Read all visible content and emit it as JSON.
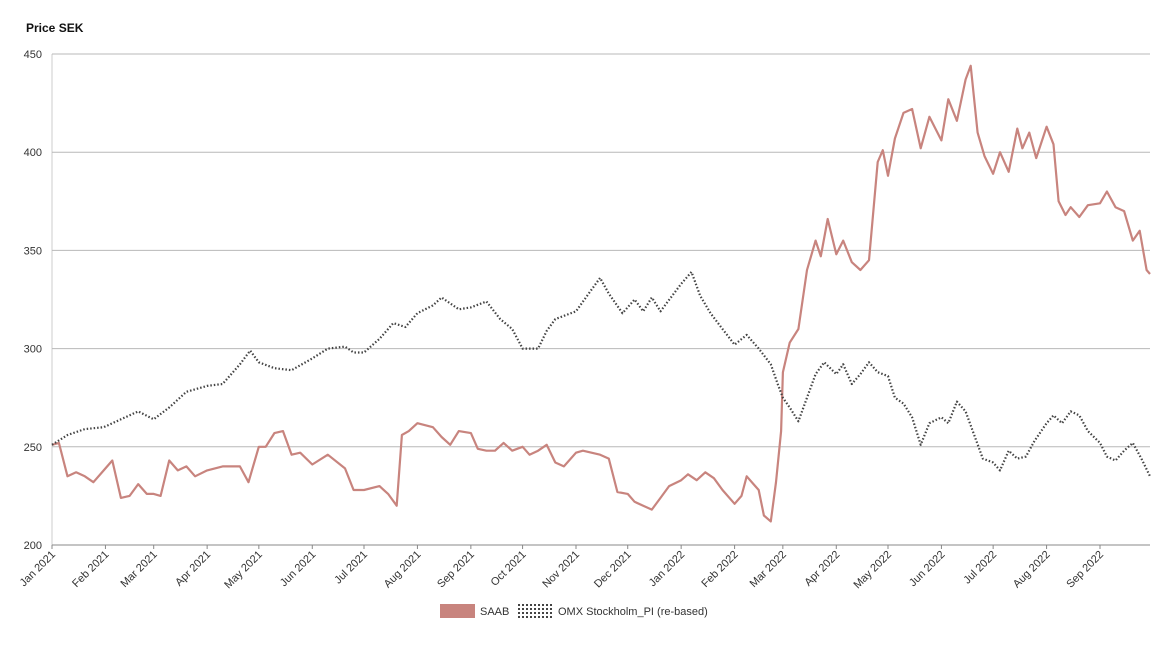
{
  "chart_data": {
    "type": "line",
    "ylabel": "Price SEK",
    "ylim": [
      200,
      450
    ],
    "yticks": [
      200,
      250,
      300,
      350,
      400,
      450
    ],
    "xlim": [
      "2021-01-01",
      "2022-09-30"
    ],
    "xticks": [
      {
        "date": "2021-01-01",
        "label": "Jan 2021"
      },
      {
        "date": "2021-02-01",
        "label": "Feb 2021"
      },
      {
        "date": "2021-03-01",
        "label": "Mar 2021"
      },
      {
        "date": "2021-04-01",
        "label": "Apr 2021"
      },
      {
        "date": "2021-05-01",
        "label": "May 2021"
      },
      {
        "date": "2021-06-01",
        "label": "Jun 2021"
      },
      {
        "date": "2021-07-01",
        "label": "Jul 2021"
      },
      {
        "date": "2021-08-01",
        "label": "Aug 2021"
      },
      {
        "date": "2021-09-01",
        "label": "Sep 2021"
      },
      {
        "date": "2021-10-01",
        "label": "Oct 2021"
      },
      {
        "date": "2021-11-01",
        "label": "Nov 2021"
      },
      {
        "date": "2021-12-01",
        "label": "Dec 2021"
      },
      {
        "date": "2022-01-01",
        "label": "Jan 2022"
      },
      {
        "date": "2022-02-01",
        "label": "Feb 2022"
      },
      {
        "date": "2022-03-01",
        "label": "Mar 2022"
      },
      {
        "date": "2022-04-01",
        "label": "Apr 2022"
      },
      {
        "date": "2022-05-01",
        "label": "May 2022"
      },
      {
        "date": "2022-06-01",
        "label": "Jun 2022"
      },
      {
        "date": "2022-07-01",
        "label": "Jul 2022"
      },
      {
        "date": "2022-08-01",
        "label": "Aug 2022"
      },
      {
        "date": "2022-09-01",
        "label": "Sep 2022"
      }
    ],
    "grid": true,
    "legend_position": "bottom",
    "series": [
      {
        "name": "SAAB",
        "color": "#c8847e",
        "style": "solid",
        "points": [
          [
            "2021-01-01",
            251
          ],
          [
            "2021-01-05",
            252
          ],
          [
            "2021-01-10",
            235
          ],
          [
            "2021-01-15",
            237
          ],
          [
            "2021-01-20",
            235
          ],
          [
            "2021-01-25",
            232
          ],
          [
            "2021-01-31",
            238
          ],
          [
            "2021-02-05",
            243
          ],
          [
            "2021-02-10",
            224
          ],
          [
            "2021-02-15",
            225
          ],
          [
            "2021-02-20",
            231
          ],
          [
            "2021-02-25",
            226
          ],
          [
            "2021-03-01",
            226
          ],
          [
            "2021-03-05",
            225
          ],
          [
            "2021-03-10",
            243
          ],
          [
            "2021-03-15",
            238
          ],
          [
            "2021-03-20",
            240
          ],
          [
            "2021-03-25",
            235
          ],
          [
            "2021-04-01",
            238
          ],
          [
            "2021-04-10",
            240
          ],
          [
            "2021-04-20",
            240
          ],
          [
            "2021-04-25",
            232
          ],
          [
            "2021-05-01",
            250
          ],
          [
            "2021-05-05",
            250
          ],
          [
            "2021-05-10",
            257
          ],
          [
            "2021-05-15",
            258
          ],
          [
            "2021-05-20",
            246
          ],
          [
            "2021-05-25",
            247
          ],
          [
            "2021-06-01",
            241
          ],
          [
            "2021-06-10",
            246
          ],
          [
            "2021-06-20",
            239
          ],
          [
            "2021-06-25",
            228
          ],
          [
            "2021-07-01",
            228
          ],
          [
            "2021-07-10",
            230
          ],
          [
            "2021-07-15",
            226
          ],
          [
            "2021-07-20",
            220
          ],
          [
            "2021-07-23",
            256
          ],
          [
            "2021-07-27",
            258
          ],
          [
            "2021-08-01",
            262
          ],
          [
            "2021-08-10",
            260
          ],
          [
            "2021-08-15",
            255
          ],
          [
            "2021-08-20",
            251
          ],
          [
            "2021-08-25",
            258
          ],
          [
            "2021-09-01",
            257
          ],
          [
            "2021-09-05",
            249
          ],
          [
            "2021-09-10",
            248
          ],
          [
            "2021-09-15",
            248
          ],
          [
            "2021-09-20",
            252
          ],
          [
            "2021-09-25",
            248
          ],
          [
            "2021-10-01",
            250
          ],
          [
            "2021-10-05",
            246
          ],
          [
            "2021-10-10",
            248
          ],
          [
            "2021-10-15",
            251
          ],
          [
            "2021-10-20",
            242
          ],
          [
            "2021-10-25",
            240
          ],
          [
            "2021-11-01",
            247
          ],
          [
            "2021-11-05",
            248
          ],
          [
            "2021-11-10",
            247
          ],
          [
            "2021-11-15",
            246
          ],
          [
            "2021-11-20",
            244
          ],
          [
            "2021-11-25",
            227
          ],
          [
            "2021-12-01",
            226
          ],
          [
            "2021-12-05",
            222
          ],
          [
            "2021-12-10",
            220
          ],
          [
            "2021-12-15",
            218
          ],
          [
            "2021-12-20",
            224
          ],
          [
            "2021-12-25",
            230
          ],
          [
            "2022-01-01",
            233
          ],
          [
            "2022-01-05",
            236
          ],
          [
            "2022-01-10",
            233
          ],
          [
            "2022-01-15",
            237
          ],
          [
            "2022-01-20",
            234
          ],
          [
            "2022-01-25",
            228
          ],
          [
            "2022-02-01",
            221
          ],
          [
            "2022-02-05",
            225
          ],
          [
            "2022-02-08",
            235
          ],
          [
            "2022-02-12",
            231
          ],
          [
            "2022-02-15",
            228
          ],
          [
            "2022-02-18",
            215
          ],
          [
            "2022-02-22",
            212
          ],
          [
            "2022-02-25",
            232
          ],
          [
            "2022-02-28",
            258
          ],
          [
            "2022-03-01",
            288
          ],
          [
            "2022-03-05",
            303
          ],
          [
            "2022-03-10",
            310
          ],
          [
            "2022-03-15",
            340
          ],
          [
            "2022-03-20",
            355
          ],
          [
            "2022-03-23",
            347
          ],
          [
            "2022-03-27",
            366
          ],
          [
            "2022-04-01",
            348
          ],
          [
            "2022-04-05",
            355
          ],
          [
            "2022-04-10",
            344
          ],
          [
            "2022-04-15",
            340
          ],
          [
            "2022-04-20",
            345
          ],
          [
            "2022-04-25",
            395
          ],
          [
            "2022-04-28",
            401
          ],
          [
            "2022-05-01",
            388
          ],
          [
            "2022-05-05",
            407
          ],
          [
            "2022-05-10",
            420
          ],
          [
            "2022-05-15",
            422
          ],
          [
            "2022-05-20",
            402
          ],
          [
            "2022-05-25",
            418
          ],
          [
            "2022-06-01",
            406
          ],
          [
            "2022-06-05",
            427
          ],
          [
            "2022-06-10",
            416
          ],
          [
            "2022-06-15",
            437
          ],
          [
            "2022-06-18",
            444
          ],
          [
            "2022-06-22",
            410
          ],
          [
            "2022-06-26",
            398
          ],
          [
            "2022-07-01",
            389
          ],
          [
            "2022-07-05",
            400
          ],
          [
            "2022-07-10",
            390
          ],
          [
            "2022-07-15",
            412
          ],
          [
            "2022-07-18",
            402
          ],
          [
            "2022-07-22",
            410
          ],
          [
            "2022-07-26",
            397
          ],
          [
            "2022-08-01",
            413
          ],
          [
            "2022-08-05",
            404
          ],
          [
            "2022-08-08",
            375
          ],
          [
            "2022-08-12",
            368
          ],
          [
            "2022-08-15",
            372
          ],
          [
            "2022-08-20",
            367
          ],
          [
            "2022-08-25",
            373
          ],
          [
            "2022-09-01",
            374
          ],
          [
            "2022-09-05",
            380
          ],
          [
            "2022-09-10",
            372
          ],
          [
            "2022-09-15",
            370
          ],
          [
            "2022-09-20",
            355
          ],
          [
            "2022-09-24",
            360
          ],
          [
            "2022-09-28",
            340
          ],
          [
            "2022-09-30",
            338
          ]
        ]
      },
      {
        "name": "OMX Stockholm_PI (re-based)",
        "color": "#444444",
        "style": "dotted",
        "points": [
          [
            "2021-01-01",
            251
          ],
          [
            "2021-01-10",
            256
          ],
          [
            "2021-01-20",
            259
          ],
          [
            "2021-01-31",
            260
          ],
          [
            "2021-02-10",
            264
          ],
          [
            "2021-02-20",
            268
          ],
          [
            "2021-03-01",
            264
          ],
          [
            "2021-03-10",
            270
          ],
          [
            "2021-03-20",
            278
          ],
          [
            "2021-04-01",
            281
          ],
          [
            "2021-04-10",
            282
          ],
          [
            "2021-04-20",
            292
          ],
          [
            "2021-04-26",
            299
          ],
          [
            "2021-05-01",
            293
          ],
          [
            "2021-05-10",
            290
          ],
          [
            "2021-05-20",
            289
          ],
          [
            "2021-06-01",
            295
          ],
          [
            "2021-06-10",
            300
          ],
          [
            "2021-06-20",
            301
          ],
          [
            "2021-06-25",
            298
          ],
          [
            "2021-07-01",
            298
          ],
          [
            "2021-07-10",
            305
          ],
          [
            "2021-07-18",
            313
          ],
          [
            "2021-07-25",
            311
          ],
          [
            "2021-08-01",
            318
          ],
          [
            "2021-08-10",
            322
          ],
          [
            "2021-08-15",
            326
          ],
          [
            "2021-08-25",
            320
          ],
          [
            "2021-09-01",
            321
          ],
          [
            "2021-09-10",
            324
          ],
          [
            "2021-09-18",
            315
          ],
          [
            "2021-09-25",
            310
          ],
          [
            "2021-10-01",
            300
          ],
          [
            "2021-10-10",
            300
          ],
          [
            "2021-10-15",
            309
          ],
          [
            "2021-10-20",
            315
          ],
          [
            "2021-11-01",
            319
          ],
          [
            "2021-11-10",
            330
          ],
          [
            "2021-11-15",
            336
          ],
          [
            "2021-11-20",
            328
          ],
          [
            "2021-11-28",
            318
          ],
          [
            "2021-12-05",
            325
          ],
          [
            "2021-12-10",
            319
          ],
          [
            "2021-12-15",
            326
          ],
          [
            "2021-12-20",
            319
          ],
          [
            "2022-01-01",
            333
          ],
          [
            "2022-01-07",
            339
          ],
          [
            "2022-01-12",
            327
          ],
          [
            "2022-01-18",
            318
          ],
          [
            "2022-01-25",
            310
          ],
          [
            "2022-02-01",
            302
          ],
          [
            "2022-02-08",
            307
          ],
          [
            "2022-02-15",
            300
          ],
          [
            "2022-02-22",
            292
          ],
          [
            "2022-02-26",
            282
          ],
          [
            "2022-03-01",
            275
          ],
          [
            "2022-03-05",
            270
          ],
          [
            "2022-03-10",
            263
          ],
          [
            "2022-03-15",
            275
          ],
          [
            "2022-03-20",
            287
          ],
          [
            "2022-03-25",
            293
          ],
          [
            "2022-04-01",
            287
          ],
          [
            "2022-04-05",
            292
          ],
          [
            "2022-04-10",
            282
          ],
          [
            "2022-04-15",
            287
          ],
          [
            "2022-04-20",
            293
          ],
          [
            "2022-04-25",
            288
          ],
          [
            "2022-05-01",
            286
          ],
          [
            "2022-05-05",
            275
          ],
          [
            "2022-05-10",
            272
          ],
          [
            "2022-05-15",
            265
          ],
          [
            "2022-05-20",
            251
          ],
          [
            "2022-05-25",
            262
          ],
          [
            "2022-06-01",
            265
          ],
          [
            "2022-06-05",
            262
          ],
          [
            "2022-06-10",
            273
          ],
          [
            "2022-06-15",
            268
          ],
          [
            "2022-06-20",
            256
          ],
          [
            "2022-06-25",
            244
          ],
          [
            "2022-07-01",
            242
          ],
          [
            "2022-07-05",
            238
          ],
          [
            "2022-07-10",
            248
          ],
          [
            "2022-07-15",
            244
          ],
          [
            "2022-07-20",
            245
          ],
          [
            "2022-07-25",
            253
          ],
          [
            "2022-08-01",
            262
          ],
          [
            "2022-08-05",
            266
          ],
          [
            "2022-08-10",
            262
          ],
          [
            "2022-08-15",
            268
          ],
          [
            "2022-08-20",
            266
          ],
          [
            "2022-08-25",
            258
          ],
          [
            "2022-09-01",
            252
          ],
          [
            "2022-09-05",
            245
          ],
          [
            "2022-09-10",
            243
          ],
          [
            "2022-09-15",
            248
          ],
          [
            "2022-09-20",
            252
          ],
          [
            "2022-09-25",
            244
          ],
          [
            "2022-09-30",
            235
          ]
        ]
      }
    ]
  }
}
